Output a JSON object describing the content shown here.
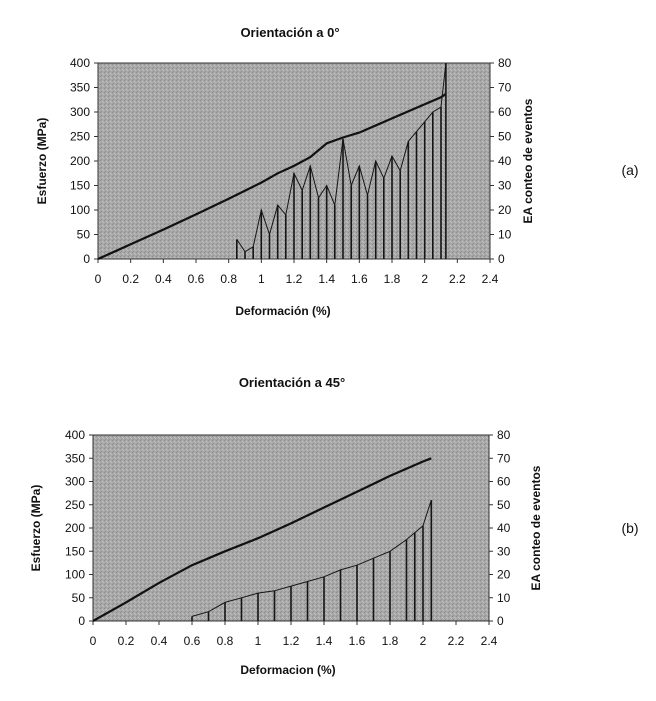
{
  "chart_data": [
    {
      "type": "line",
      "panel_label": "(a)",
      "title": "Orientación a 0°",
      "xlabel": "Deformación (%)",
      "ylabel": "Esfuerzo (MPa)",
      "y2label": "EA conteo de eventos",
      "xlim": [
        0,
        2.4
      ],
      "ylim": [
        0,
        400
      ],
      "y2lim": [
        0,
        80
      ],
      "xticks": [
        "0",
        "0.2",
        "0.4",
        "0.6",
        "0.8",
        "1",
        "1.2",
        "1.4",
        "1.6",
        "1.8",
        "2",
        "2.2",
        "2.4"
      ],
      "yticks": [
        "0",
        "50",
        "100",
        "150",
        "200",
        "250",
        "300",
        "350",
        "400"
      ],
      "y2ticks": [
        "0",
        "10",
        "20",
        "30",
        "40",
        "50",
        "60",
        "70",
        "80"
      ],
      "grid": false,
      "plot_bg": "#a9a9a9",
      "series": [
        {
          "axis": "y",
          "x": [
            0,
            0.2,
            0.4,
            0.6,
            0.8,
            1.0,
            1.1,
            1.2,
            1.3,
            1.4,
            1.5,
            1.6,
            1.8,
            2.0,
            2.1,
            2.13
          ],
          "y": [
            0,
            30,
            60,
            91,
            123,
            156,
            175,
            190,
            208,
            236,
            248,
            258,
            287,
            316,
            330,
            337
          ]
        },
        {
          "axis": "y2",
          "style": "burst",
          "x": [
            0.85,
            0.9,
            0.95,
            1.0,
            1.05,
            1.1,
            1.15,
            1.2,
            1.25,
            1.3,
            1.35,
            1.4,
            1.45,
            1.5,
            1.55,
            1.6,
            1.65,
            1.7,
            1.75,
            1.8,
            1.85,
            1.9,
            1.95,
            2.0,
            2.05,
            2.1,
            2.13
          ],
          "y": [
            8,
            3,
            5,
            20,
            10,
            22,
            18,
            35,
            28,
            38,
            25,
            30,
            22,
            49,
            30,
            38,
            26,
            40,
            33,
            42,
            36,
            48,
            52,
            56,
            60,
            62,
            80
          ]
        }
      ]
    },
    {
      "type": "line",
      "panel_label": "(b)",
      "title": "Orientación a 45°",
      "xlabel": "Deformacion (%)",
      "ylabel": "Esfuerzo (MPa)",
      "y2label": "EA conteo de eventos",
      "xlim": [
        0,
        2.4
      ],
      "ylim": [
        0,
        400
      ],
      "y2lim": [
        0,
        80
      ],
      "xticks": [
        "0",
        "0.2",
        "0.4",
        "0.6",
        "0.8",
        "1",
        "1.2",
        "1.4",
        "1.6",
        "1.8",
        "2",
        "2.2",
        "2.4"
      ],
      "yticks": [
        "0",
        "50",
        "100",
        "150",
        "200",
        "250",
        "300",
        "350",
        "400"
      ],
      "y2ticks": [
        "0",
        "10",
        "20",
        "30",
        "40",
        "50",
        "60",
        "70",
        "80"
      ],
      "grid": false,
      "plot_bg": "#a9a9a9",
      "series": [
        {
          "axis": "y",
          "x": [
            0,
            0.2,
            0.4,
            0.6,
            0.8,
            1.0,
            1.2,
            1.4,
            1.6,
            1.8,
            2.0,
            2.05
          ],
          "y": [
            0,
            40,
            82,
            120,
            150,
            178,
            210,
            244,
            278,
            312,
            343,
            350
          ]
        },
        {
          "axis": "y2",
          "style": "burst",
          "x": [
            0.6,
            0.7,
            0.8,
            0.9,
            1.0,
            1.1,
            1.2,
            1.3,
            1.4,
            1.5,
            1.6,
            1.7,
            1.8,
            1.9,
            1.95,
            2.0,
            2.05
          ],
          "y": [
            2,
            4,
            8,
            10,
            12,
            13,
            15,
            17,
            19,
            22,
            24,
            27,
            30,
            35,
            38,
            41,
            52
          ]
        }
      ]
    }
  ]
}
